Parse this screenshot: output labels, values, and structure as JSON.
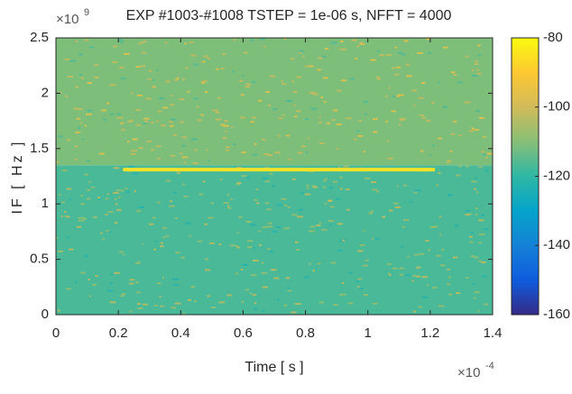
{
  "chart_data": {
    "type": "spectrogram",
    "title": "EXP  #1003-#1008  TSTEP = 1e-06 s,   NFFT = 4000",
    "xlabel": "Time [ s ]",
    "ylabel": "IF [ Hz ]",
    "x_multiplier": "×10",
    "x_exponent": "-4",
    "y_multiplier": "×10",
    "y_exponent": "9",
    "xlim": [
      0,
      0.00014
    ],
    "xticks": [
      0,
      {
        "value": 2e-05,
        "label": "0.2"
      },
      {
        "value": 4e-05,
        "label": "0.4"
      },
      {
        "value": 6e-05,
        "label": "0.6"
      },
      {
        "value": 8e-05,
        "label": "0.8"
      },
      {
        "value": 0.0001,
        "label": "1"
      },
      {
        "value": 0.00012,
        "label": "1.2"
      },
      {
        "value": 0.00014,
        "label": "1.4"
      }
    ],
    "ylim": [
      0,
      2500000000
    ],
    "yticks": [
      0,
      {
        "value": 500000000,
        "label": "0.5"
      },
      {
        "value": 1000000000,
        "label": "1"
      },
      {
        "value": 1500000000,
        "label": "1.5"
      },
      {
        "value": 2000000000,
        "label": "2"
      },
      {
        "value": 2500000000,
        "label": "2.5"
      }
    ],
    "background": {
      "y_edges": [
        0,
        1350000000,
        2500000000
      ],
      "levels": [
        -117,
        -111
      ]
    },
    "series": [
      {
        "color": "#f3e328",
        "x": [
          2.2e-05,
          0.000121
        ],
        "values": [
          1310000000,
          1310000000
        ]
      }
    ],
    "clim": [
      -160,
      -80
    ],
    "colorbar_ticks": [
      -80,
      -100,
      -120,
      -140,
      -160
    ],
    "colormap": [
      "#352a87",
      "#0f5cdd",
      "#1481d6",
      "#06a4ca",
      "#2eb7a4",
      "#87bf77",
      "#d1bb59",
      "#fec832",
      "#f9fb0e"
    ]
  }
}
